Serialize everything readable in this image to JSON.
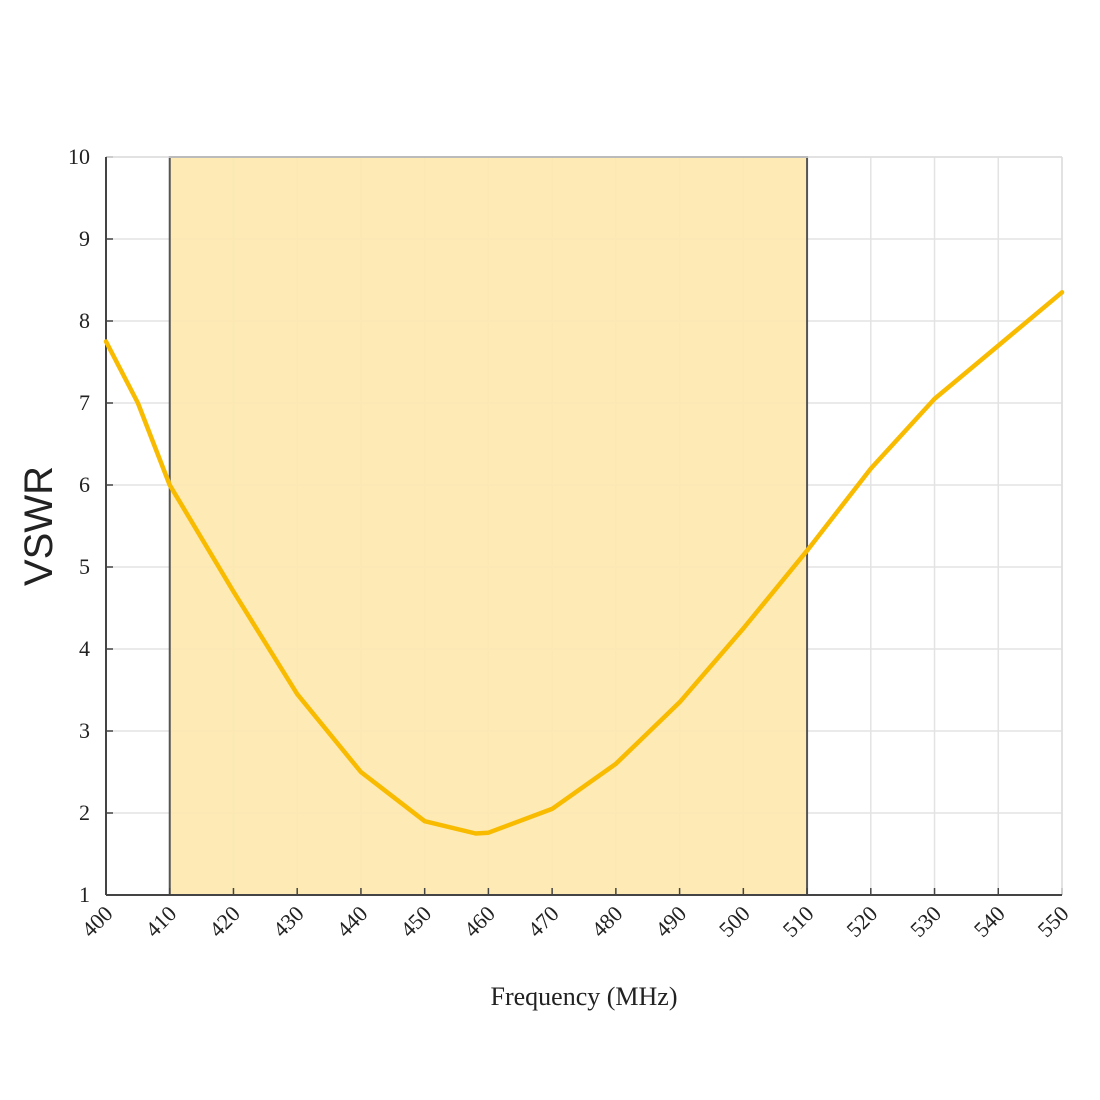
{
  "chart_data": {
    "type": "line",
    "x_label": "Frequency (MHz)",
    "y_label": "VSWR",
    "x": [
      400,
      405,
      410,
      420,
      430,
      440,
      450,
      458,
      460,
      470,
      480,
      490,
      500,
      510,
      520,
      530,
      540,
      550
    ],
    "series": [
      {
        "name": "VSWR",
        "color": "#f8bb00",
        "values": [
          7.75,
          7.0,
          6.0,
          4.7,
          3.45,
          2.5,
          1.9,
          1.75,
          1.76,
          2.05,
          2.6,
          3.35,
          4.25,
          5.2,
          6.2,
          7.05,
          7.7,
          8.35
        ]
      }
    ],
    "highlight": {
      "range": [
        410,
        510
      ],
      "color": "#fde8ad"
    },
    "xlim": [
      400,
      550
    ],
    "xticks": [
      400,
      410,
      420,
      430,
      440,
      450,
      460,
      470,
      480,
      490,
      500,
      510,
      520,
      530,
      540,
      550
    ],
    "ylim": [
      1,
      10
    ],
    "yticks": [
      1,
      2,
      3,
      4,
      5,
      6,
      7,
      8,
      9,
      10
    ],
    "grid": true
  }
}
